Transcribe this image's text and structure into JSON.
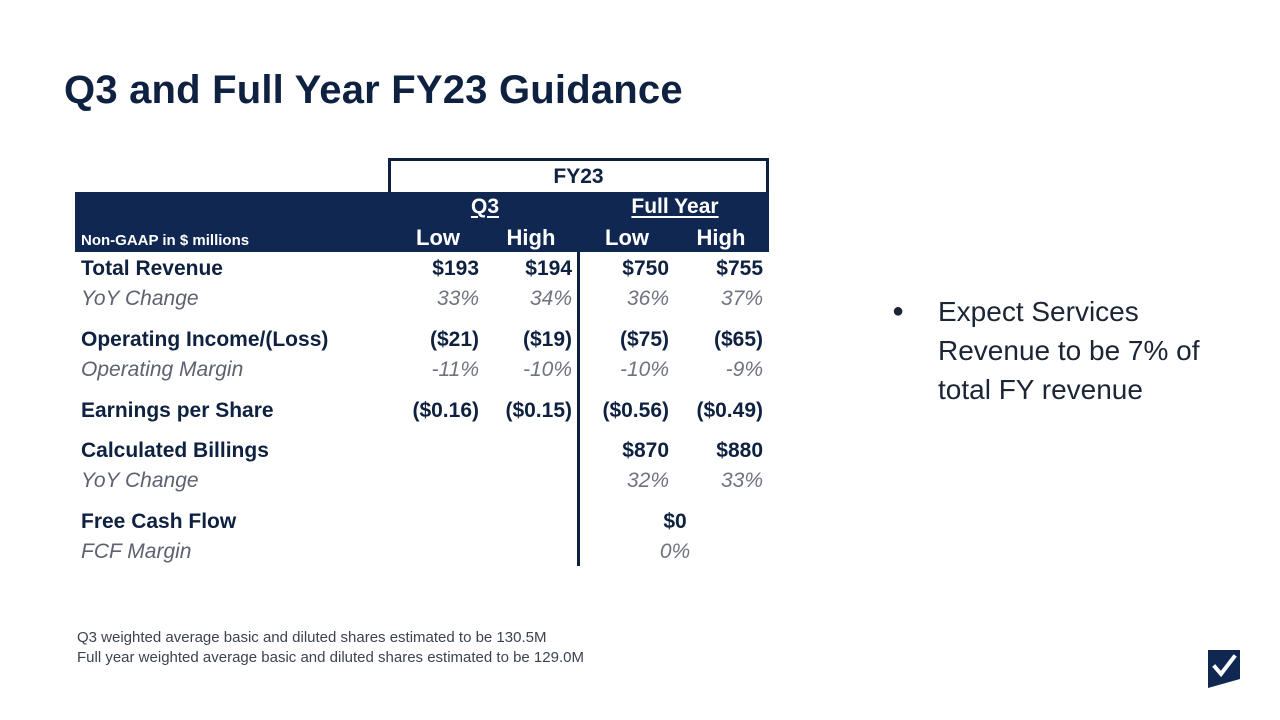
{
  "title": "Q3 and Full Year FY23 Guidance",
  "table": {
    "period_header": "FY23",
    "group_q3": "Q3",
    "group_full_year": "Full Year",
    "col_low": "Low",
    "col_high": "High",
    "row_header_label": "Non-GAAP in $ millions",
    "rows": {
      "total_revenue": {
        "label": "Total Revenue",
        "q3_low": "$193",
        "q3_high": "$194",
        "fy_low": "$750",
        "fy_high": "$755"
      },
      "revenue_yoy": {
        "label": "YoY Change",
        "q3_low": "33%",
        "q3_high": "34%",
        "fy_low": "36%",
        "fy_high": "37%"
      },
      "operating_income": {
        "label": "Operating Income/(Loss)",
        "q3_low": "($21)",
        "q3_high": "($19)",
        "fy_low": "($75)",
        "fy_high": "($65)"
      },
      "operating_margin": {
        "label": "Operating Margin",
        "q3_low": "-11%",
        "q3_high": "-10%",
        "fy_low": "-10%",
        "fy_high": "-9%"
      },
      "eps": {
        "label": "Earnings per Share",
        "q3_low": "($0.16)",
        "q3_high": "($0.15)",
        "fy_low": "($0.56)",
        "fy_high": "($0.49)"
      },
      "billings": {
        "label": "Calculated Billings",
        "fy_low": "$870",
        "fy_high": "$880"
      },
      "billings_yoy": {
        "label": "YoY Change",
        "fy_low": "32%",
        "fy_high": "33%"
      },
      "fcf": {
        "label": "Free Cash Flow",
        "fy_value": "$0"
      },
      "fcf_margin": {
        "label": "FCF Margin",
        "fy_value": "0%"
      }
    }
  },
  "bullet": "Expect Services Revenue to be 7% of total FY revenue",
  "footnotes": [
    "Q3 weighted average basic and diluted shares estimated to be 130.5M",
    "Full year weighted average basic and diluted shares estimated to be 129.0M"
  ],
  "colors": {
    "navy": "#0f2751",
    "title": "#0f2140",
    "muted": "#6f7380"
  },
  "logo_icon": "checkmark-logo-icon"
}
